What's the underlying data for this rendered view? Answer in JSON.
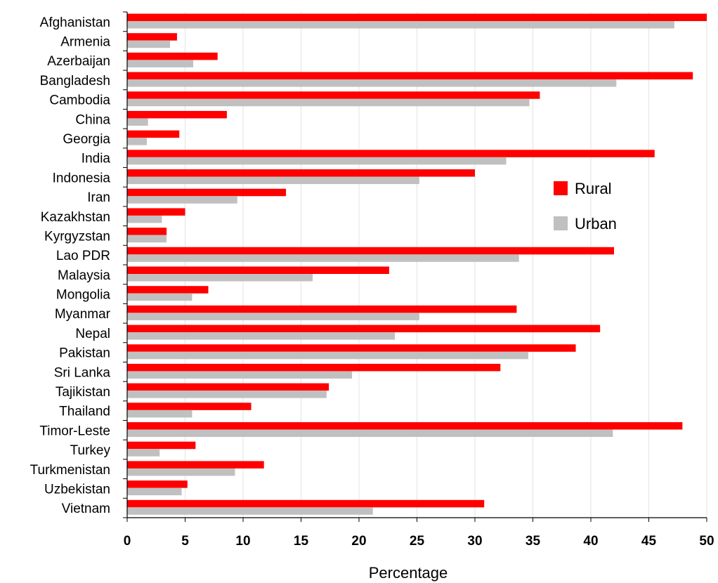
{
  "chart_data": {
    "type": "bar",
    "orientation": "horizontal",
    "title": "",
    "xlabel": "Percentage",
    "ylabel": "",
    "xlim": [
      0,
      50
    ],
    "xticks": [
      0,
      5,
      10,
      15,
      20,
      25,
      30,
      35,
      40,
      45,
      50
    ],
    "grid": "vertical",
    "legend_position": "right",
    "categories": [
      "Afghanistan",
      "Armenia",
      "Azerbaijan",
      "Bangladesh",
      "Cambodia",
      "China",
      "Georgia",
      "India",
      "Indonesia",
      "Iran",
      "Kazakhstan",
      "Kyrgyzstan",
      "Lao PDR",
      "Malaysia",
      "Mongolia",
      "Myanmar",
      "Nepal",
      "Pakistan",
      "Sri Lanka",
      "Tajikistan",
      "Thailand",
      "Timor-Leste",
      "Turkey",
      "Turkmenistan",
      "Uzbekistan",
      "Vietnam"
    ],
    "series": [
      {
        "name": "Rural",
        "color": "#ff0000",
        "values": [
          50,
          4.3,
          7.8,
          48.8,
          35.6,
          8.6,
          4.5,
          45.5,
          30,
          13.7,
          5,
          3.4,
          42,
          22.6,
          7,
          33.6,
          40.8,
          38.7,
          32.2,
          17.4,
          10.7,
          47.9,
          5.9,
          11.8,
          5.2,
          30.8
        ]
      },
      {
        "name": "Urban",
        "color": "#c0c0c0",
        "values": [
          47.2,
          3.7,
          5.7,
          42.2,
          34.7,
          1.8,
          1.7,
          32.7,
          25.2,
          9.5,
          3,
          3.4,
          33.8,
          16,
          5.6,
          25.2,
          23.1,
          34.6,
          19.4,
          17.2,
          5.6,
          41.9,
          2.8,
          9.3,
          4.7,
          21.2
        ]
      }
    ]
  }
}
